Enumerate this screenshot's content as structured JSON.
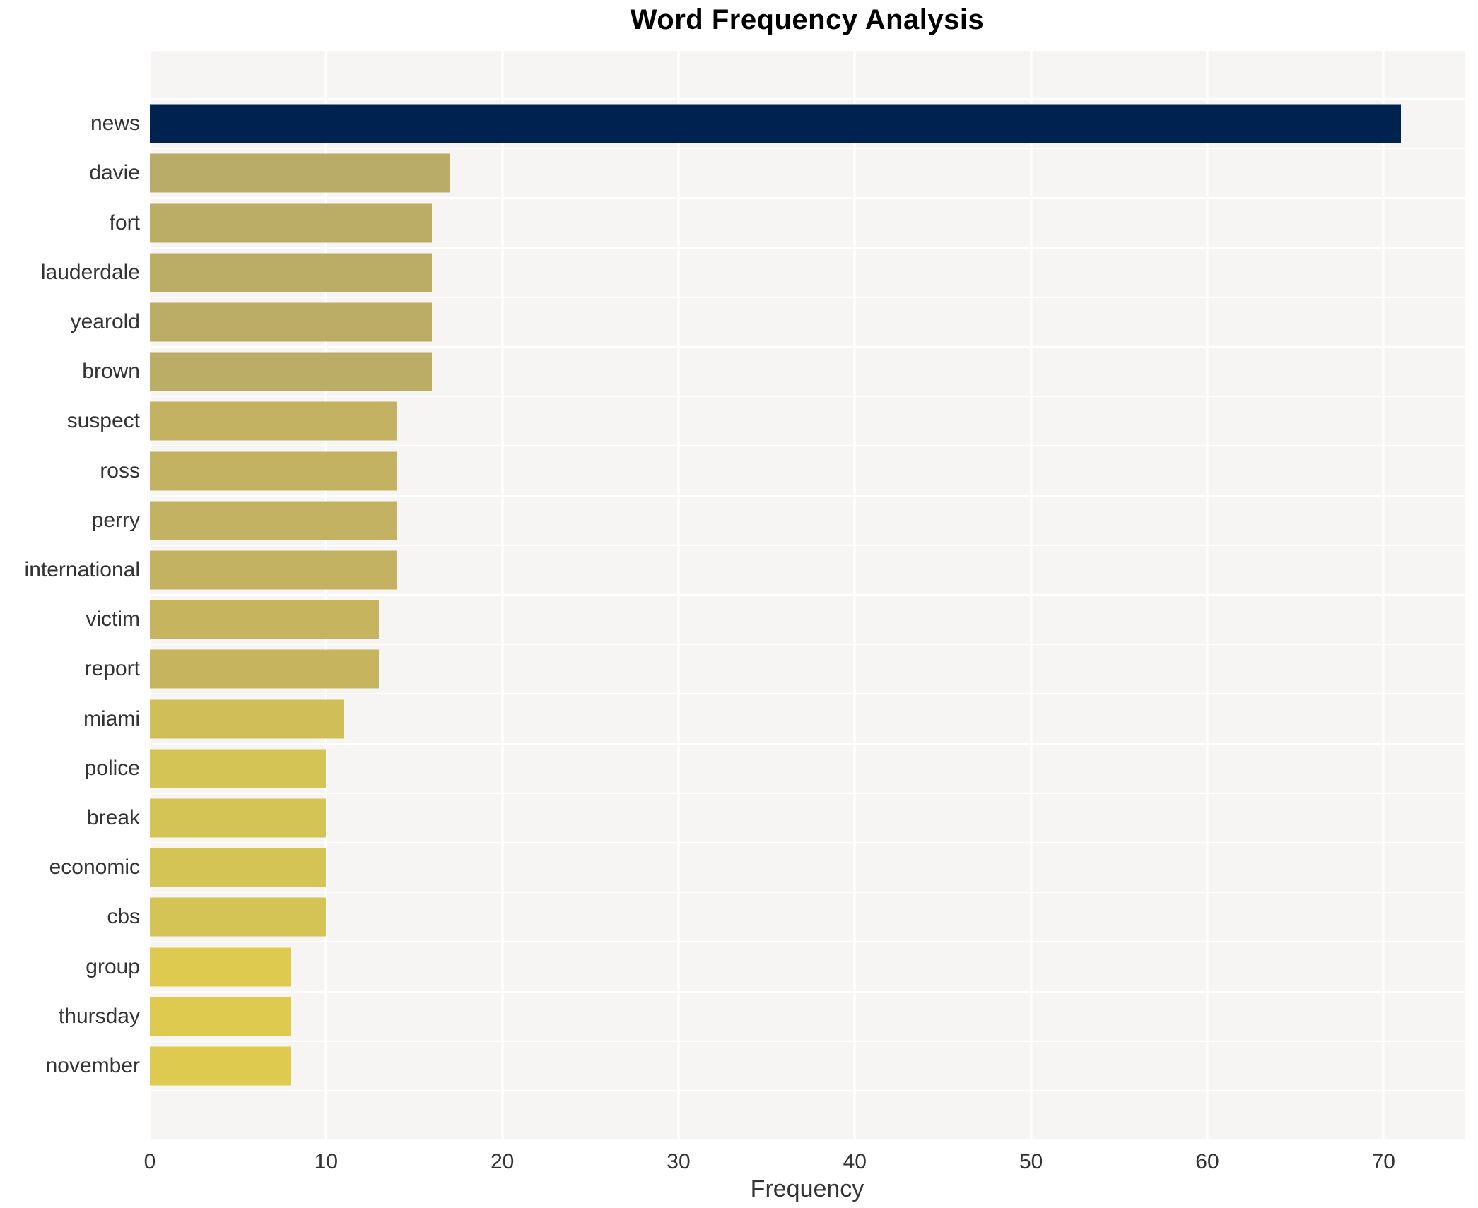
{
  "title": "Word Frequency Analysis",
  "chart_data": {
    "type": "bar",
    "orientation": "horizontal",
    "title": "Word Frequency Analysis",
    "xlabel": "Frequency",
    "ylabel": "",
    "categories": [
      "news",
      "davie",
      "fort",
      "lauderdale",
      "yearold",
      "brown",
      "suspect",
      "ross",
      "perry",
      "international",
      "victim",
      "report",
      "miami",
      "police",
      "break",
      "economic",
      "cbs",
      "group",
      "thursday",
      "november"
    ],
    "values": [
      71,
      17,
      16,
      16,
      16,
      16,
      14,
      14,
      14,
      14,
      13,
      13,
      11,
      10,
      10,
      10,
      10,
      8,
      8,
      8
    ],
    "bar_colors": [
      "#00224e",
      "#b9ab68",
      "#bcad66",
      "#bcad66",
      "#bcad66",
      "#bcad66",
      "#c2b261",
      "#c2b261",
      "#c2b261",
      "#c2b261",
      "#c6b55e",
      "#c6b55e",
      "#d0bf58",
      "#d4c355",
      "#d4c355",
      "#d4c355",
      "#d4c355",
      "#ddca4f",
      "#ddca4f",
      "#ddca4f"
    ],
    "xlim": [
      0,
      74.6
    ],
    "xticks": [
      0,
      10,
      20,
      30,
      40,
      50,
      60,
      70
    ],
    "grid": true,
    "legend": "none",
    "plot_background": "#f6f5f4",
    "grid_color": "#ffffff",
    "text_color": "#333333"
  }
}
